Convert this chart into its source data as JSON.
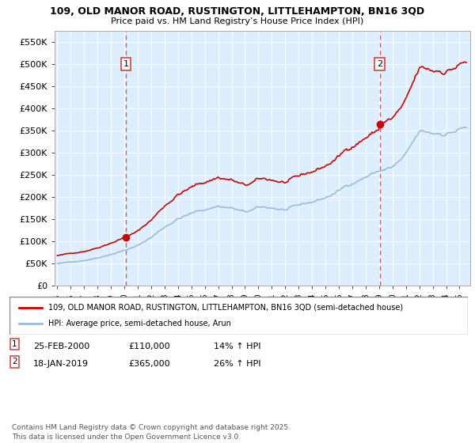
{
  "title_line1": "109, OLD MANOR ROAD, RUSTINGTON, LITTLEHAMPTON, BN16 3QD",
  "title_line2": "Price paid vs. HM Land Registry’s House Price Index (HPI)",
  "legend_line1": "109, OLD MANOR ROAD, RUSTINGTON, LITTLEHAMPTON, BN16 3QD (semi-detached house)",
  "legend_line2": "HPI: Average price, semi-detached house, Arun",
  "annotation1_label": "1",
  "annotation1_date": "25-FEB-2000",
  "annotation1_price": "£110,000",
  "annotation1_hpi": "14% ↑ HPI",
  "annotation2_label": "2",
  "annotation2_date": "18-JAN-2019",
  "annotation2_price": "£365,000",
  "annotation2_hpi": "26% ↑ HPI",
  "footnote": "Contains HM Land Registry data © Crown copyright and database right 2025.\nThis data is licensed under the Open Government Licence v3.0.",
  "ylim": [
    0,
    575000
  ],
  "yticks": [
    0,
    50000,
    100000,
    150000,
    200000,
    250000,
    300000,
    350000,
    400000,
    450000,
    500000,
    550000
  ],
  "ytick_labels": [
    "£0",
    "£50K",
    "£100K",
    "£150K",
    "£200K",
    "£250K",
    "£300K",
    "£350K",
    "£400K",
    "£450K",
    "£500K",
    "£550K"
  ],
  "red_color": "#cc0000",
  "blue_color": "#99bbdd",
  "vline_color": "#cc4444",
  "plot_bg": "#ddeeff",
  "purchase1_year": 2000.12,
  "purchase1_value": 110000,
  "purchase2_year": 2019.04,
  "purchase2_value": 365000,
  "xmin": 1994.8,
  "xmax": 2025.8
}
